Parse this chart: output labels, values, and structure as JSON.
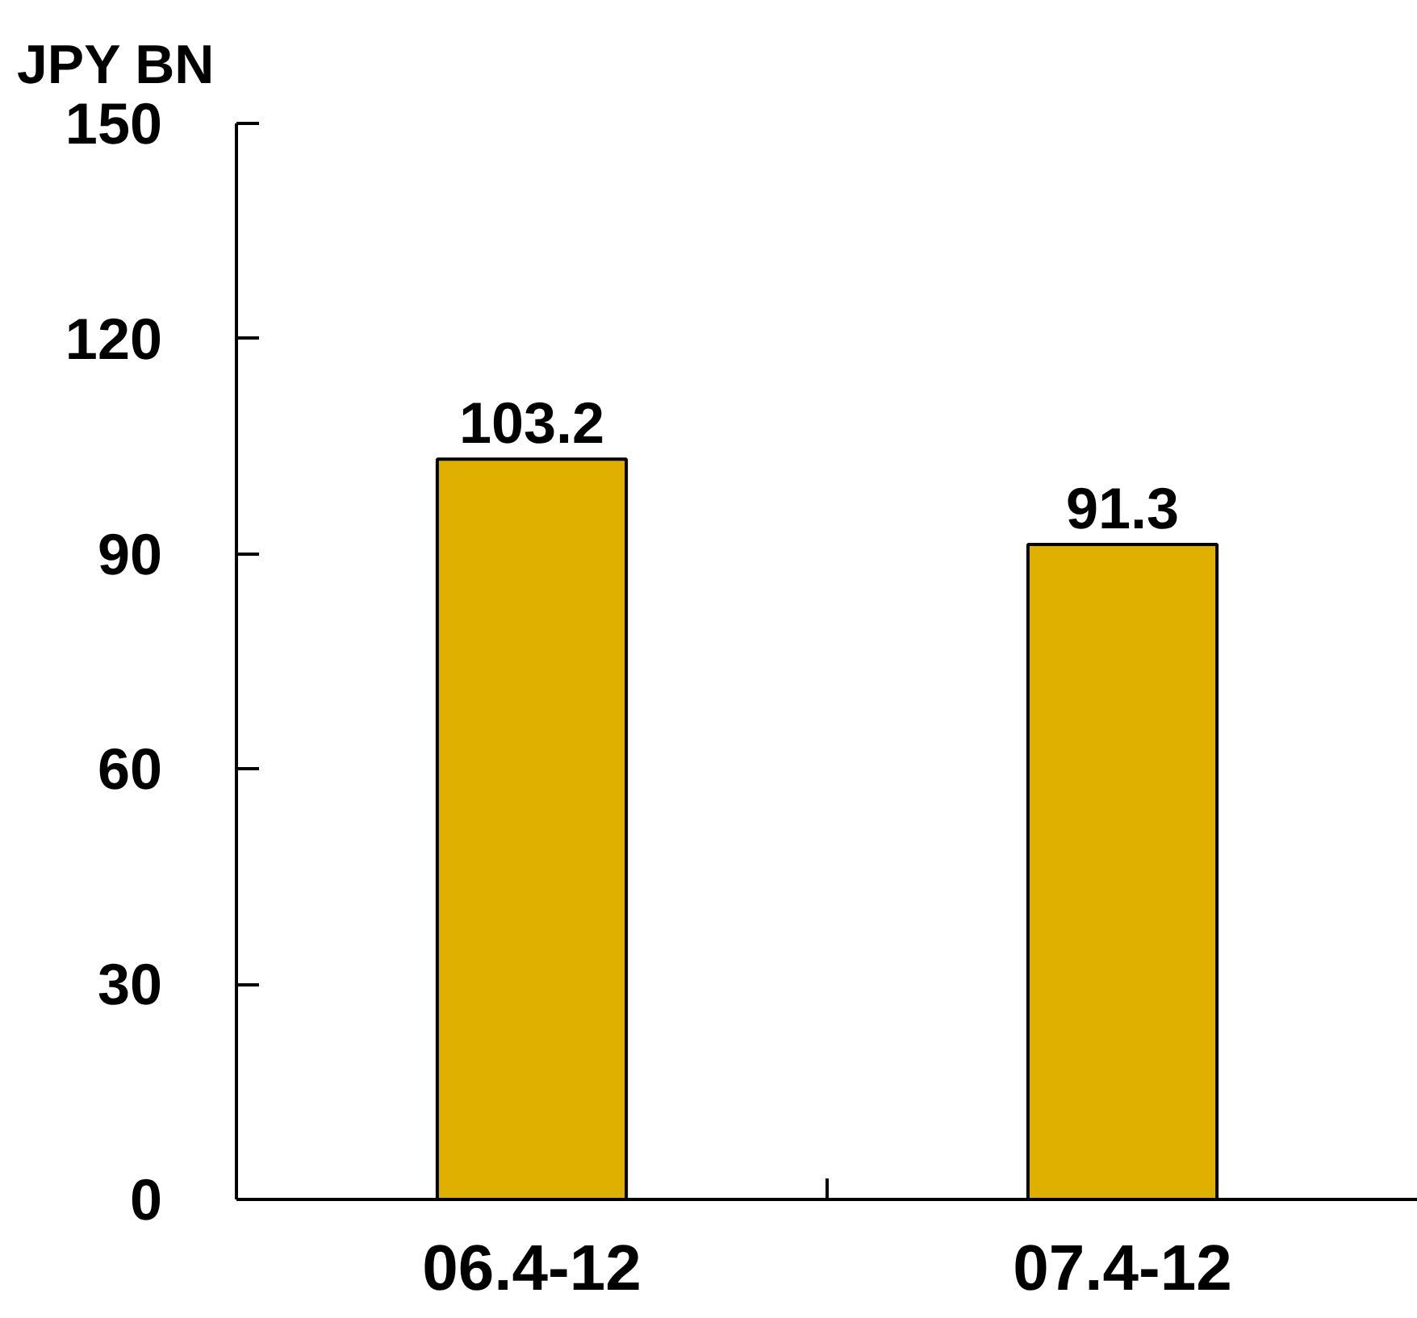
{
  "chart_data": {
    "type": "bar",
    "ylabel": "JPY BN",
    "categories": [
      "06.4-12",
      "07.4-12"
    ],
    "values": [
      103.2,
      91.3
    ],
    "color": "#e0b000",
    "ylim": [
      0,
      150
    ],
    "yticks": [
      0,
      30,
      60,
      90,
      120,
      150
    ],
    "data_labels": true
  }
}
